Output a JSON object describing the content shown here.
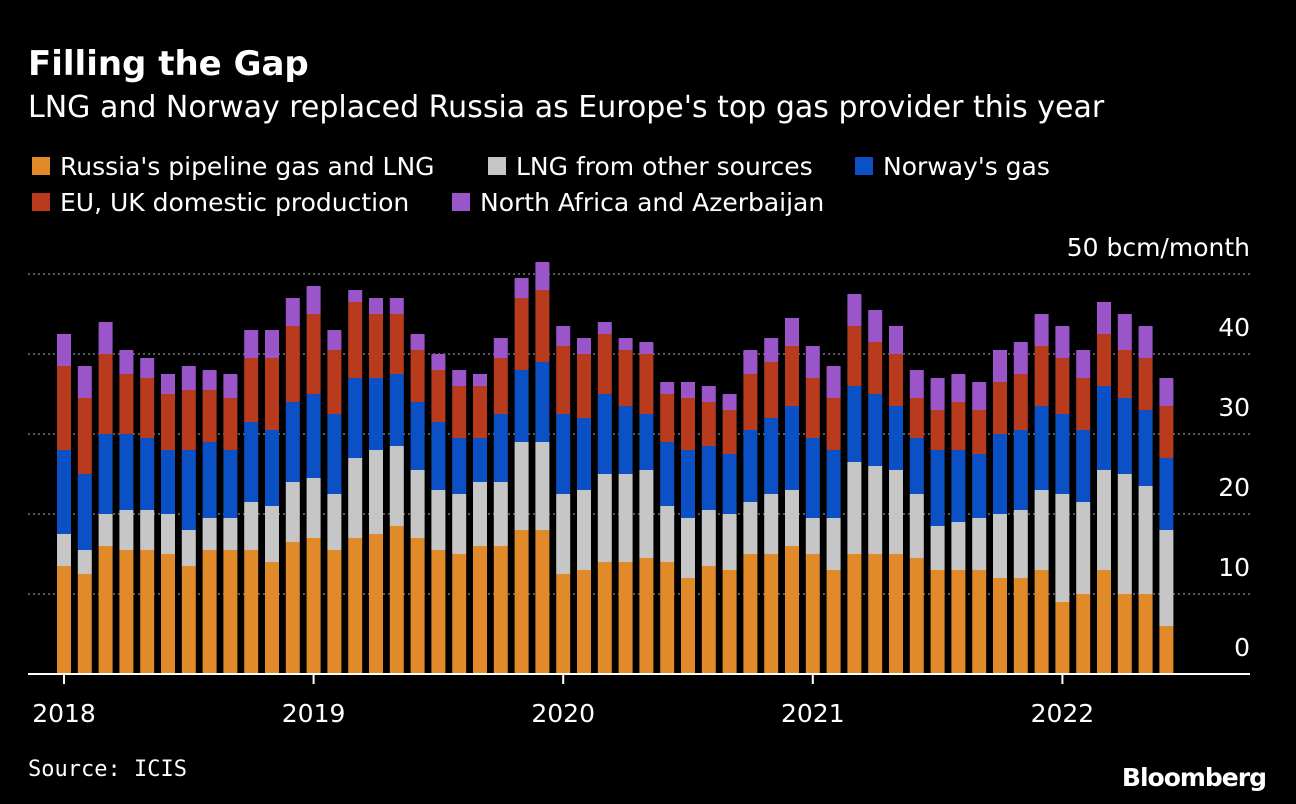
{
  "chart_data": {
    "type": "stacked-bar",
    "title": "Filling the Gap",
    "subtitle": "LNG and Norway replaced Russia as Europe's top gas provider this year",
    "source": "Source: ICIS",
    "brand": "Bloomberg",
    "categories": [
      "2018",
      null,
      null,
      null,
      null,
      null,
      null,
      null,
      null,
      null,
      null,
      null,
      "2019",
      null,
      null,
      null,
      null,
      null,
      null,
      null,
      null,
      null,
      null,
      null,
      "2020",
      null,
      null,
      null,
      null,
      null,
      null,
      null,
      null,
      null,
      null,
      null,
      "2021",
      null,
      null,
      null,
      null,
      null,
      null,
      null,
      null,
      null,
      null,
      null,
      "2022",
      null,
      null,
      null,
      null,
      null
    ],
    "ylim": [
      0,
      50
    ],
    "yticks": [
      0,
      10,
      20,
      30,
      40,
      {
        "value": 50,
        "label": "50 bcm/month"
      }
    ],
    "grid": true,
    "series": [
      {
        "name": "Russia's pipeline gas and LNG",
        "color": "#e08a2a",
        "values": [
          13.5,
          12.5,
          16,
          15.5,
          15.5,
          15,
          13.5,
          15.5,
          15.5,
          15.5,
          14,
          16.5,
          17,
          15.5,
          17,
          17.5,
          18.5,
          17,
          15.5,
          15,
          16,
          16,
          18,
          18,
          12.5,
          13,
          14,
          14,
          14.5,
          14,
          12,
          13.5,
          13,
          15,
          15,
          16,
          15,
          13,
          15,
          15,
          15,
          14.5,
          13,
          13,
          13,
          12,
          12,
          13,
          9,
          10,
          13,
          10,
          10,
          6
        ]
      },
      {
        "name": "LNG from other sources",
        "color": "#c6c6c6",
        "values": [
          4,
          3,
          4,
          5,
          5,
          5,
          4.5,
          4,
          4,
          6,
          7,
          7.5,
          7.5,
          7,
          10,
          10.5,
          10,
          8.5,
          7.5,
          7.5,
          8,
          8,
          11,
          11,
          10,
          10,
          11,
          11,
          11,
          7,
          7.5,
          7,
          7,
          6.5,
          7.5,
          7,
          4.5,
          6.5,
          11.5,
          11,
          10.5,
          8,
          5.5,
          6,
          6.5,
          8,
          8.5,
          10,
          13.5,
          11.5,
          12.5,
          15,
          13.5,
          12
        ]
      },
      {
        "name": "Norway's gas",
        "color": "#0b50c4",
        "values": [
          10.5,
          9.5,
          10,
          9.5,
          9,
          8,
          10,
          9.5,
          8.5,
          10,
          9.5,
          10,
          10.5,
          10,
          10,
          9,
          9,
          8.5,
          8.5,
          7,
          5.5,
          8.5,
          9,
          10,
          10,
          9,
          10,
          8.5,
          7,
          8,
          8.5,
          8,
          7.5,
          9,
          9.5,
          10.5,
          10,
          8.5,
          9.5,
          9,
          8,
          7,
          9.5,
          9,
          8,
          10,
          10,
          10.5,
          10,
          9,
          10.5,
          9.5,
          9.5,
          9
        ]
      },
      {
        "name": "EU, UK domestic production",
        "color": "#b73b1c",
        "values": [
          10.5,
          9.5,
          10,
          7.5,
          7.5,
          7,
          7.5,
          6.5,
          6.5,
          8,
          9,
          9.5,
          10,
          8,
          9.5,
          8,
          7.5,
          6.5,
          6.5,
          6.5,
          6.5,
          7,
          9,
          9,
          8.5,
          8,
          7.5,
          7,
          7.5,
          6,
          6.5,
          5.5,
          5.5,
          7,
          7,
          7.5,
          7.5,
          6.5,
          7.5,
          6.5,
          6.5,
          5,
          5,
          6,
          5.5,
          6.5,
          7,
          7.5,
          7,
          6.5,
          6.5,
          6,
          6.5,
          6.5
        ]
      },
      {
        "name": "North Africa and Azerbaijan",
        "color": "#9a55c8",
        "values": [
          4,
          4,
          4,
          3,
          2.5,
          2.5,
          3,
          2.5,
          3,
          3.5,
          3.5,
          3.5,
          3.5,
          2.5,
          1.5,
          2,
          2,
          2,
          2,
          2,
          1.5,
          2.5,
          2.5,
          3.5,
          2.5,
          2,
          1.5,
          1.5,
          1.5,
          1.5,
          2,
          2,
          2,
          3,
          3,
          3.5,
          4,
          4,
          4,
          4,
          3.5,
          3.5,
          4,
          3.5,
          3.5,
          4,
          4,
          4,
          4,
          3.5,
          4,
          4.5,
          4,
          3.5
        ]
      }
    ]
  }
}
